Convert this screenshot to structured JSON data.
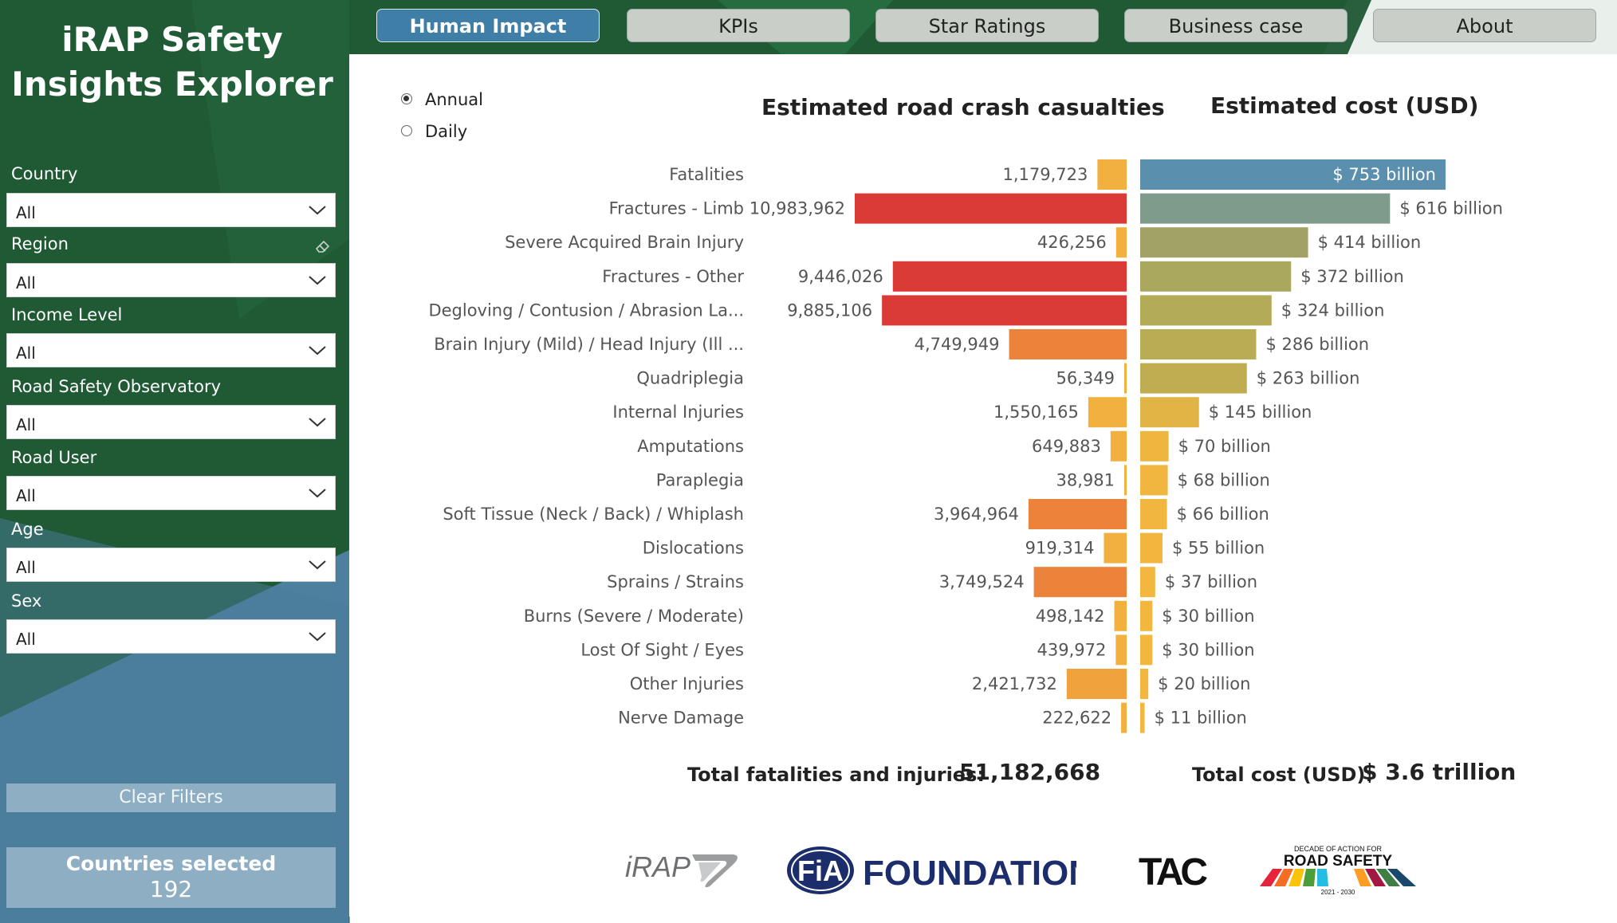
{
  "app": {
    "title_line1": "iRAP Safety",
    "title_line2": "Insights Explorer"
  },
  "tabs": [
    {
      "label": "Human Impact",
      "active": true
    },
    {
      "label": "KPIs",
      "active": false
    },
    {
      "label": "Star Ratings",
      "active": false
    },
    {
      "label": "Business case",
      "active": false
    },
    {
      "label": "About",
      "active": false
    }
  ],
  "filters": [
    {
      "label": "Country",
      "value": "All"
    },
    {
      "label": "Region",
      "value": "All"
    },
    {
      "label": "Income Level",
      "value": "All"
    },
    {
      "label": "Road Safety Observatory",
      "value": "All"
    },
    {
      "label": "Road User",
      "value": "All"
    },
    {
      "label": "Age",
      "value": "All"
    },
    {
      "label": "Sex",
      "value": "All"
    }
  ],
  "clear_filters_label": "Clear Filters",
  "countries_selected": {
    "label": "Countries selected",
    "value": "192"
  },
  "period": {
    "options": [
      "Annual",
      "Daily"
    ],
    "selected": "Annual"
  },
  "totals": {
    "casualties_label": "Total fatalities and injuries:",
    "casualties_value": "51,182,668",
    "cost_label": "Total cost (USD):",
    "cost_value": "$ 3.6 trillion"
  },
  "logos": {
    "irap": "iRAP",
    "fia": "FiA",
    "fia_word": "FOUNDATION",
    "tac": "TAC",
    "decade_small": "DECADE OF ACTION FOR",
    "decade_big": "ROAD SAFETY",
    "decade_years": "2021 - 2030"
  },
  "colors": {
    "sidebar_green": "#1f5a35",
    "sidebar_blue": "#4d7f9f",
    "tab_active": "#3f7ea6",
    "tab_inactive": "#c9cec9"
  },
  "chart_data": {
    "type": "bar",
    "layout": "butterfly",
    "categories": [
      "Fatalities",
      "Fractures - Limb",
      "Severe Acquired Brain Injury",
      "Fractures - Other",
      "Degloving / Contusion / Abrasion La...",
      "Brain Injury (Mild) / Head Injury (Ill ...",
      "Quadriplegia",
      "Internal Injuries",
      "Amputations",
      "Paraplegia",
      "Soft Tissue (Neck / Back) / Whiplash",
      "Dislocations",
      "Sprains / Strains",
      "Burns (Severe / Moderate)",
      "Lost Of Sight / Eyes",
      "Other Injuries",
      "Nerve Damage"
    ],
    "series": [
      {
        "name": "Estimated road crash casualties",
        "values": [
          1179723,
          10983962,
          426256,
          9446026,
          9885106,
          4749949,
          56349,
          1550165,
          649883,
          38981,
          3964964,
          919314,
          3749524,
          498142,
          439972,
          2421732,
          222622
        ],
        "labels": [
          "1,179,723",
          "10,983,962",
          "426,256",
          "9,446,026",
          "9,885,106",
          "4,749,949",
          "56,349",
          "1,550,165",
          "649,883",
          "38,981",
          "3,964,964",
          "919,314",
          "3,749,524",
          "498,142",
          "439,972",
          "2,421,732",
          "222,622"
        ],
        "colors": [
          "#f2b13e",
          "#db3b36",
          "#f2b13e",
          "#db3b36",
          "#db3b36",
          "#eb843a",
          "#f2b13e",
          "#f2b13e",
          "#f2b13e",
          "#f2b13e",
          "#eb843a",
          "#f2b13e",
          "#eb843a",
          "#f2b13e",
          "#f2b13e",
          "#f0a23d",
          "#f2b13e"
        ]
      },
      {
        "name": "Estimated cost (USD)",
        "unit": "USD billion",
        "values": [
          753,
          616,
          414,
          372,
          324,
          286,
          263,
          145,
          70,
          68,
          66,
          55,
          37,
          30,
          30,
          20,
          11
        ],
        "labels": [
          "$ 753 billion",
          "$ 616 billion",
          "$ 414 billion",
          "$ 372 billion",
          "$ 324 billion",
          "$ 286 billion",
          "$ 263 billion",
          "$ 145 billion",
          "$ 70 billion",
          "$ 68 billion",
          "$ 66 billion",
          "$ 55 billion",
          "$ 37 billion",
          "$ 30 billion",
          "$ 30 billion",
          "$ 20 billion",
          "$ 11 billion"
        ],
        "colors": [
          "#5a8fae",
          "#7e9b8c",
          "#a3a266",
          "#a9a85e",
          "#b3ab58",
          "#b8ac55",
          "#c0ad52",
          "#e0b546",
          "#eeb63f",
          "#f0b63f",
          "#f0b63f",
          "#f2b63f",
          "#f2b73f",
          "#f2b73f",
          "#f2b73f",
          "#f2b73f",
          "#f2b73f"
        ]
      }
    ],
    "title": "",
    "xlabel": "",
    "ylabel": "",
    "legend": "none",
    "grid": false
  }
}
